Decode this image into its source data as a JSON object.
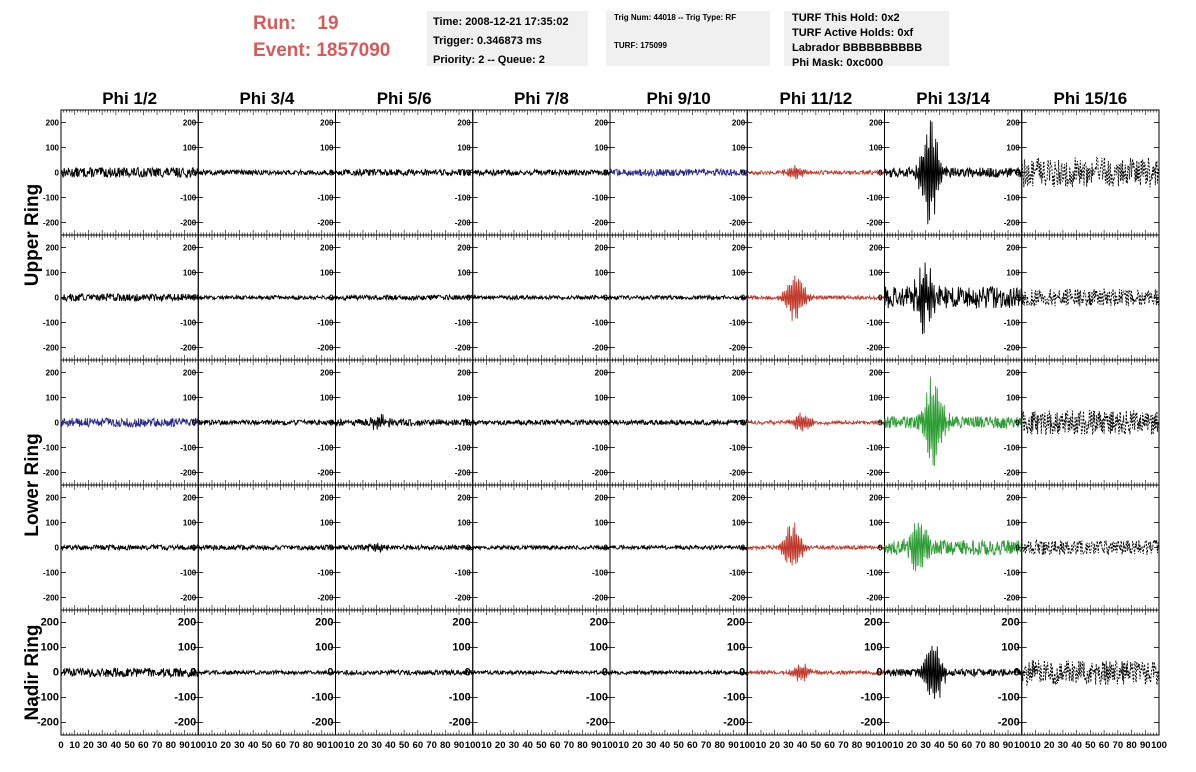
{
  "run": {
    "run_label": "Run:",
    "run_value": "19",
    "event_label": "Event:",
    "event_value": "1857090"
  },
  "info_boxes": {
    "time": "Time: 2008-12-21 17:35:02",
    "trigger": "Trigger: 0.346873 ms",
    "priority": "Priority: 2 -- Queue: 2",
    "trig": "Trig Num: 44018 -- Trig Type: RF",
    "turf": "TURF: 175099",
    "hold": "TURF This Hold: 0x2",
    "active": "TURF Active Holds: 0xf",
    "labrador": "Labrador BBBBBBBBBB",
    "phimask": "Phi Mask: 0xc000"
  },
  "colors": {
    "normal": "#000000",
    "blue": "#2a2a8c",
    "red": "#c0392b",
    "green": "#2e9e34",
    "run_text": "#d65a5a",
    "box_bg": "#f0f0f0"
  },
  "chart_data": {
    "type": "line",
    "columns": [
      "Phi 1/2",
      "Phi 3/4",
      "Phi 5/6",
      "Phi 7/8",
      "Phi 9/10",
      "Phi 11/12",
      "Phi 13/14",
      "Phi 15/16"
    ],
    "rows": [
      "Upper Ring",
      "Lower Ring",
      "Nadir Ring"
    ],
    "panel_rows": 5,
    "ylim": [
      -250,
      250
    ],
    "yticks": [
      -200,
      -100,
      0,
      100,
      200
    ],
    "xlim": [
      0,
      100
    ],
    "xticks": [
      0,
      10,
      20,
      30,
      40,
      50,
      60,
      70,
      80,
      90,
      100
    ],
    "panels": [
      {
        "row": 0,
        "col": 0,
        "amp": 20,
        "burst": 0,
        "center": 40,
        "style": "solid",
        "color": "normal"
      },
      {
        "row": 0,
        "col": 1,
        "amp": 10,
        "burst": 0,
        "center": 40,
        "style": "solid",
        "color": "normal"
      },
      {
        "row": 0,
        "col": 2,
        "amp": 13,
        "burst": 0,
        "center": 40,
        "style": "solid",
        "color": "normal"
      },
      {
        "row": 0,
        "col": 3,
        "amp": 12,
        "burst": 0,
        "center": 40,
        "style": "solid",
        "color": "normal"
      },
      {
        "row": 0,
        "col": 4,
        "amp": 14,
        "burst": 0,
        "center": 40,
        "style": "solid",
        "color": "blue"
      },
      {
        "row": 0,
        "col": 5,
        "amp": 8,
        "burst": 30,
        "center": 35,
        "style": "solid",
        "color": "red"
      },
      {
        "row": 0,
        "col": 6,
        "amp": 20,
        "burst": 230,
        "center": 33,
        "style": "solid",
        "color": "normal"
      },
      {
        "row": 0,
        "col": 7,
        "amp": 60,
        "burst": 0,
        "center": 40,
        "style": "dashed",
        "color": "normal"
      },
      {
        "row": 1,
        "col": 0,
        "amp": 15,
        "burst": 0,
        "center": 40,
        "style": "solid",
        "color": "normal"
      },
      {
        "row": 1,
        "col": 1,
        "amp": 8,
        "burst": 0,
        "center": 40,
        "style": "solid",
        "color": "normal"
      },
      {
        "row": 1,
        "col": 2,
        "amp": 10,
        "burst": 0,
        "center": 40,
        "style": "solid",
        "color": "normal"
      },
      {
        "row": 1,
        "col": 3,
        "amp": 8,
        "burst": 0,
        "center": 40,
        "style": "solid",
        "color": "normal"
      },
      {
        "row": 1,
        "col": 4,
        "amp": 8,
        "burst": 0,
        "center": 40,
        "style": "solid",
        "color": "normal"
      },
      {
        "row": 1,
        "col": 5,
        "amp": 8,
        "burst": 110,
        "center": 35,
        "style": "solid",
        "color": "red"
      },
      {
        "row": 1,
        "col": 6,
        "amp": 45,
        "burst": 130,
        "center": 30,
        "style": "solid",
        "color": "normal"
      },
      {
        "row": 1,
        "col": 7,
        "amp": 35,
        "burst": 0,
        "center": 40,
        "style": "dashed",
        "color": "normal"
      },
      {
        "row": 2,
        "col": 0,
        "amp": 18,
        "burst": 0,
        "center": 40,
        "style": "solid",
        "color": "blue"
      },
      {
        "row": 2,
        "col": 1,
        "amp": 10,
        "burst": 0,
        "center": 40,
        "style": "solid",
        "color": "normal"
      },
      {
        "row": 2,
        "col": 2,
        "amp": 14,
        "burst": 30,
        "center": 32,
        "style": "solid",
        "color": "normal"
      },
      {
        "row": 2,
        "col": 3,
        "amp": 10,
        "burst": 0,
        "center": 40,
        "style": "solid",
        "color": "normal"
      },
      {
        "row": 2,
        "col": 4,
        "amp": 10,
        "burst": 0,
        "center": 40,
        "style": "solid",
        "color": "normal"
      },
      {
        "row": 2,
        "col": 5,
        "amp": 8,
        "burst": 45,
        "center": 40,
        "style": "solid",
        "color": "red"
      },
      {
        "row": 2,
        "col": 6,
        "amp": 25,
        "burst": 210,
        "center": 36,
        "style": "solid",
        "color": "green"
      },
      {
        "row": 2,
        "col": 7,
        "amp": 50,
        "burst": 0,
        "center": 40,
        "style": "dashed",
        "color": "normal"
      },
      {
        "row": 3,
        "col": 0,
        "amp": 10,
        "burst": 0,
        "center": 40,
        "style": "solid",
        "color": "normal"
      },
      {
        "row": 3,
        "col": 1,
        "amp": 10,
        "burst": 0,
        "center": 40,
        "style": "solid",
        "color": "normal"
      },
      {
        "row": 3,
        "col": 2,
        "amp": 10,
        "burst": 15,
        "center": 30,
        "style": "solid",
        "color": "normal"
      },
      {
        "row": 3,
        "col": 3,
        "amp": 8,
        "burst": 0,
        "center": 40,
        "style": "solid",
        "color": "normal"
      },
      {
        "row": 3,
        "col": 4,
        "amp": 8,
        "burst": 0,
        "center": 40,
        "style": "solid",
        "color": "normal"
      },
      {
        "row": 3,
        "col": 5,
        "amp": 8,
        "burst": 110,
        "center": 33,
        "style": "solid",
        "color": "red"
      },
      {
        "row": 3,
        "col": 6,
        "amp": 30,
        "burst": 120,
        "center": 25,
        "style": "solid",
        "color": "green"
      },
      {
        "row": 3,
        "col": 7,
        "amp": 30,
        "burst": 0,
        "center": 40,
        "style": "dashed",
        "color": "normal"
      },
      {
        "row": 4,
        "col": 0,
        "amp": 18,
        "burst": 0,
        "center": 40,
        "style": "solid",
        "color": "normal"
      },
      {
        "row": 4,
        "col": 1,
        "amp": 8,
        "burst": 0,
        "center": 40,
        "style": "solid",
        "color": "normal"
      },
      {
        "row": 4,
        "col": 2,
        "amp": 10,
        "burst": 0,
        "center": 40,
        "style": "solid",
        "color": "normal"
      },
      {
        "row": 4,
        "col": 3,
        "amp": 8,
        "burst": 0,
        "center": 40,
        "style": "solid",
        "color": "normal"
      },
      {
        "row": 4,
        "col": 4,
        "amp": 8,
        "burst": 0,
        "center": 40,
        "style": "solid",
        "color": "normal"
      },
      {
        "row": 4,
        "col": 5,
        "amp": 8,
        "burst": 40,
        "center": 40,
        "style": "solid",
        "color": "red"
      },
      {
        "row": 4,
        "col": 6,
        "amp": 15,
        "burst": 150,
        "center": 36,
        "style": "solid",
        "color": "normal"
      },
      {
        "row": 4,
        "col": 7,
        "amp": 50,
        "burst": 0,
        "center": 40,
        "style": "dashed",
        "color": "normal"
      }
    ]
  }
}
